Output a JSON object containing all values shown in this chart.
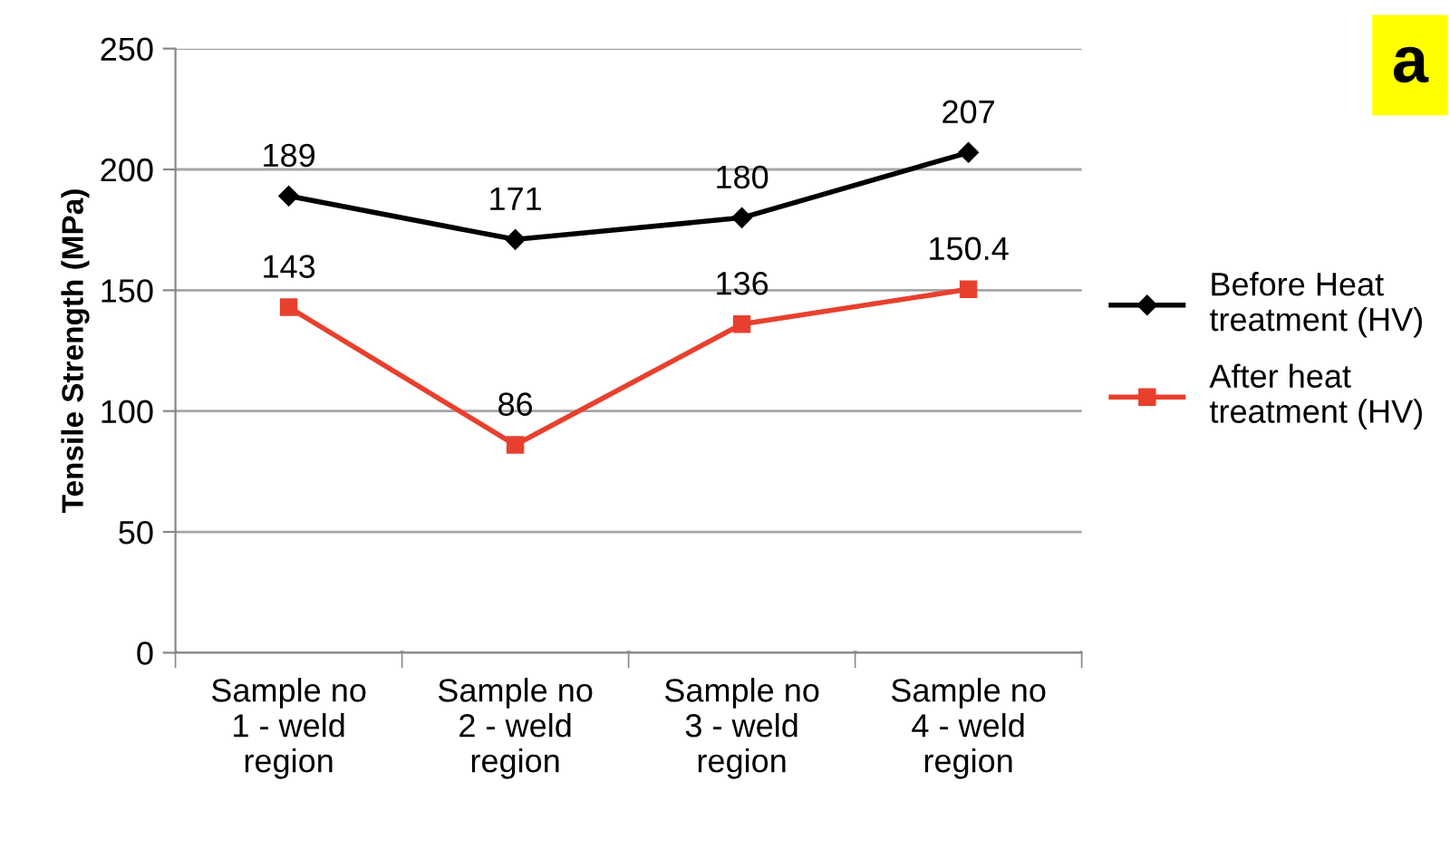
{
  "chart_data": {
    "type": "line",
    "ylabel": "Tensile Strength (MPa)",
    "categories": [
      "Sample no\n1 - weld\nregion",
      "Sample no\n2 - weld\nregion",
      "Sample no\n3 - weld\nregion",
      "Sample no\n4 - weld\nregion"
    ],
    "series": [
      {
        "name": "Before Heat\ntreatment (HV)",
        "color": "#000000",
        "marker": "diamond",
        "values": [
          189,
          171,
          180,
          207
        ]
      },
      {
        "name": "After heat\ntreatment (HV)",
        "color": "#e8402e",
        "marker": "square",
        "values": [
          143,
          86,
          136,
          150.4
        ]
      }
    ],
    "ylim": [
      0,
      250
    ],
    "yticks": [
      0,
      50,
      100,
      150,
      200,
      250
    ],
    "grid": "y",
    "legend": "right",
    "data_labels": true,
    "line_style": "solid",
    "annotations": [
      "a"
    ]
  }
}
